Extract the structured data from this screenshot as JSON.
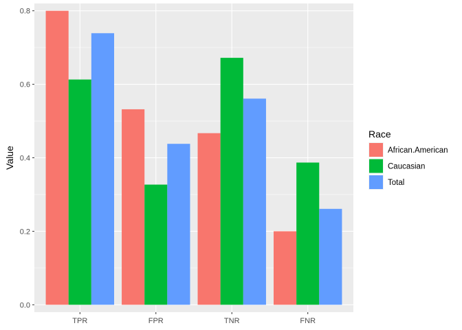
{
  "chart_data": {
    "type": "bar",
    "categories": [
      "TPR",
      "FPR",
      "TNR",
      "FNR"
    ],
    "series": [
      {
        "name": "African.American",
        "color": "#F8766D",
        "values": [
          0.8,
          0.532,
          0.467,
          0.2
        ]
      },
      {
        "name": "Caucasian",
        "color": "#00BA38",
        "values": [
          0.613,
          0.327,
          0.672,
          0.387
        ]
      },
      {
        "name": "Total",
        "color": "#619CFF",
        "values": [
          0.739,
          0.438,
          0.561,
          0.261
        ]
      }
    ],
    "title": "",
    "xlabel": "",
    "ylabel": "Value",
    "ylim": [
      -0.02,
      0.82
    ],
    "yticks": [
      0.0,
      0.2,
      0.4,
      0.6,
      0.8
    ],
    "ytick_labels": [
      "0.0",
      "0.2",
      "0.4",
      "0.6",
      "0.8"
    ],
    "grid": true,
    "legend": {
      "title": "Race",
      "position": "right"
    },
    "panel_background": "#EBEBEB",
    "grid_color": "#FFFFFF"
  }
}
